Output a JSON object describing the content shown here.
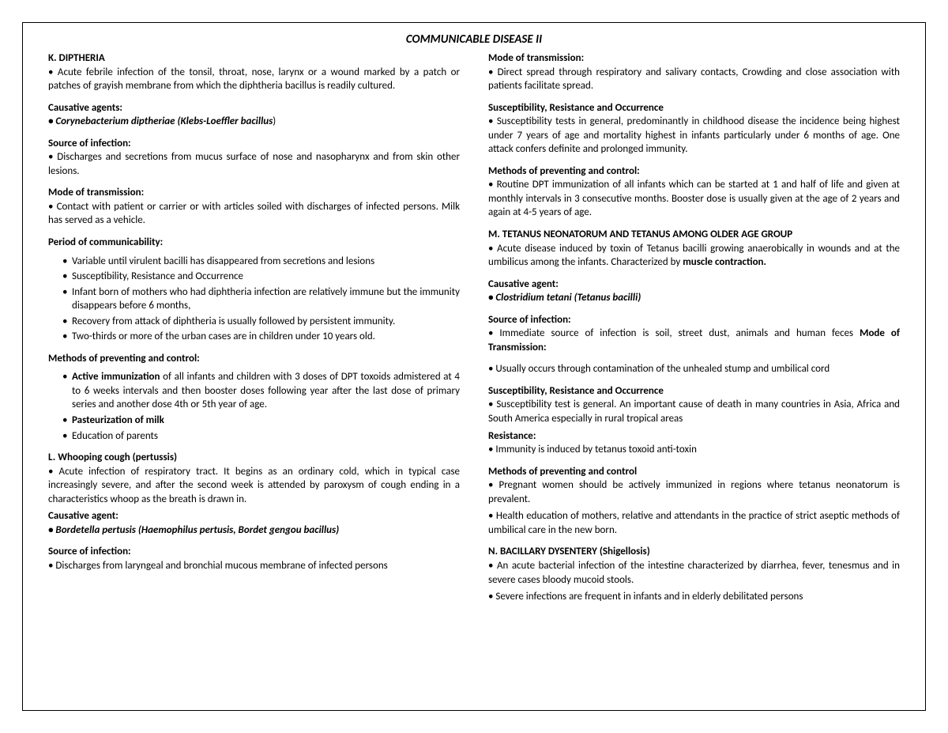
{
  "title": "COMMUNICABLE DISEASE II",
  "left": {
    "k_title": "K. DIPTHERIA",
    "k_desc": "• Acute febrile infection of the tonsil, throat, nose, larynx or a wound marked by a patch or patches of grayish membrane from which the diphtheria bacillus is readily cultured.",
    "k_cause_h": "Causative agents:",
    "k_cause_b": "• Corynebacterium diptheriae (Klebs-Loeffler bacillus",
    "k_cause_close": ")",
    "k_src_h": "Source of infection:",
    "k_src": "• Discharges and secretions from mucus surface of nose and nasopharynx and from skin other lesions.",
    "k_mode_h": "Mode of transmission:",
    "k_mode": "• Contact with patient or carrier or with articles soiled with discharges of infected persons. Milk has served as a vehicle.",
    "k_period_h": "Period of communicability:",
    "k_period_items": [
      "Variable until virulent bacilli has disappeared from secretions and lesions",
      "Susceptibility, Resistance and Occurrence",
      "Infant born of mothers who had diphtheria infection are relatively immune but the immunity disappears before 6 months,",
      "Recovery from attack of diphtheria is usually followed by persistent immunity.",
      "Two-thirds or more of the urban cases are in children under 10 years old."
    ],
    "k_prev_h": "Methods of preventing and control:",
    "k_prev1_bold": "Active immunization",
    "k_prev1_rest": " of all infants and children with 3 doses of DPT toxoids admistered at 4 to 6 weeks intervals and then booster doses following year after the last dose of primary series and another dose 4th or 5th year of age.",
    "k_prev2": "Pasteurization of milk",
    "k_prev3": "Education of parents",
    "l_title": "L. Whooping cough (pertussis)",
    "l_desc": "• Acute infection of respiratory tract. It begins as an ordinary cold, which in typical case increasingly severe, and after the second week is attended by paroxysm of cough ending in a characteristics whoop as the breath is drawn in.",
    "l_cause_h": "Causative agent:",
    "l_cause": "• Bordetella pertusis (Haemophilus pertusis, Bordet gengou bacillus)",
    "l_src_h": "Source of infection:",
    "l_src": "• Discharges from laryngeal and bronchial mucous membrane of infected persons"
  },
  "right": {
    "mode_h": "Mode of transmission:",
    "mode": "• Direct spread through respiratory and salivary contacts, Crowding and close association with patients facilitate spread.",
    "sro_h": "Susceptibility, Resistance and Occurrence",
    "sro": "• Susceptibility tests in general, predominantly in childhood disease the incidence being highest under 7 years of age and mortality highest in infants particularly under 6 months of age. One attack confers definite and prolonged immunity.",
    "prev_h": "Methods of preventing and control:",
    "prev": "• Routine DPT immunization of all infants which can be started at 1 and half of life and given at monthly intervals in 3 consecutive months. Booster dose is usually given at the age of 2 years and again at 4-5 years of age.",
    "m_title": "M. TETANUS NEONATORUM AND TETANUS AMONG OLDER AGE GROUP",
    "m_desc_a": "• Acute disease induced by toxin of Tetanus bacilli growing anaerobically in wounds and at the umbilicus among the infants. Characterized by ",
    "m_desc_b": "muscle contraction.",
    "m_cause_h": "Causative agent:",
    "m_cause": "• Clostridium tetani (Tetanus bacilli)",
    "m_src_h": "Source of infection:",
    "m_src_a": "• Immediate source of infection is soil, street dust, animals and human feces ",
    "m_src_b": "Mode of Transmission:",
    "m_trans": "• Usually occurs through contamination of the unhealed stump and umbilical cord",
    "m_sro_h": "Susceptibility, Resistance and Occurrence",
    "m_sro": "• Susceptibility test is general. An important cause of death in many countries in Asia, Africa and South America especially in rural tropical areas",
    "m_res_h": "Resistance:",
    "m_res": "• Immunity is induced by tetanus toxoid anti-toxin",
    "m_prev_h": "Methods of preventing and control",
    "m_prev1": "• Pregnant women should be actively immunized in regions where tetanus neonatorum is prevalent.",
    "m_prev2": "• Health education of mothers, relative and attendants in the practice of strict aseptic methods of umbilical care in the new born.",
    "n_title": "N. BACILLARY DYSENTERY (Shigellosis)",
    "n_desc1": "• An acute bacterial infection of the intestine characterized by diarrhea, fever, tenesmus and in severe cases bloody mucoid stools.",
    "n_desc2": "• Severe infections are frequent in infants and in elderly debilitated persons"
  }
}
